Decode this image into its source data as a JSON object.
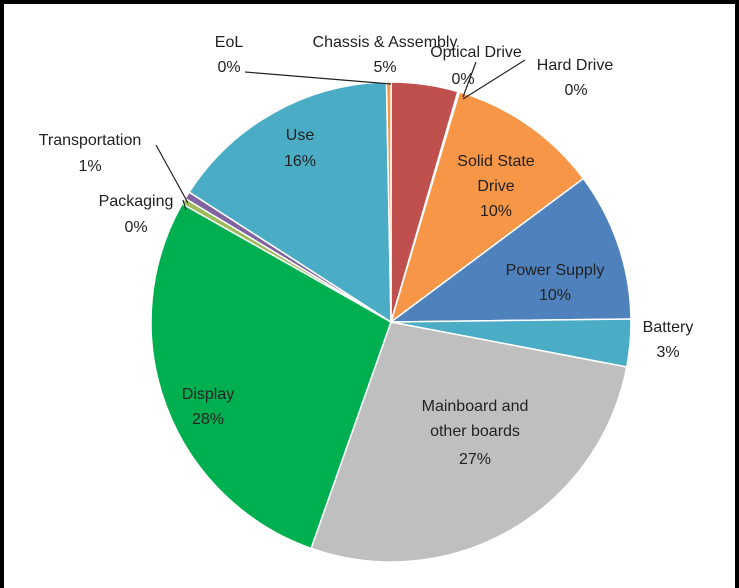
{
  "chart_data": {
    "type": "pie",
    "title": "",
    "start_angle_deg": 0,
    "direction": "clockwise",
    "slices": [
      {
        "label": "Chassis & Assembly",
        "value_label": "5%",
        "value": 4.5,
        "color": "#c0504d"
      },
      {
        "label": "Optical Drive",
        "value_label": "0%",
        "value": 0.05,
        "color": "#bfbfbf"
      },
      {
        "label": "Hard Drive",
        "value_label": "0%",
        "value": 0.05,
        "color": "#7f7f7f"
      },
      {
        "label": "Solid State Drive",
        "value_label": "10%",
        "value": 10.2,
        "color": "#f79646"
      },
      {
        "label": "Power Supply",
        "value_label": "10%",
        "value": 10.0,
        "color": "#4f81bd"
      },
      {
        "label": "Battery",
        "value_label": "3%",
        "value": 3.2,
        "color": "#4bacc6"
      },
      {
        "label": "Mainboard and other boards",
        "value_label": "27%",
        "value": 27.4,
        "color": "#bfbfbf"
      },
      {
        "label": "Display",
        "value_label": "28%",
        "value": 27.8,
        "color": "#00b050"
      },
      {
        "label": "Packaging",
        "value_label": "0%",
        "value": 0.4,
        "color": "#9bbb59"
      },
      {
        "label": "Transportation",
        "value_label": "1%",
        "value": 0.5,
        "color": "#8064a2"
      },
      {
        "label": "Use",
        "value_label": "16%",
        "value": 15.6,
        "color": "#4bacc6"
      },
      {
        "label": "EoL",
        "value_label": "0%",
        "value": 0.3,
        "color": "#f79646"
      }
    ]
  }
}
